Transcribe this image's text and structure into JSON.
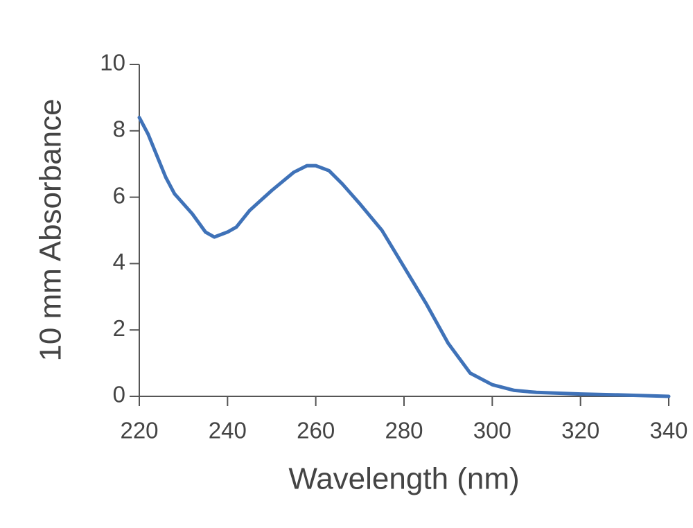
{
  "chart_data": {
    "type": "line",
    "x_label": "Wavelength (nm)",
    "y_label": "10 mm Absorbance",
    "x": [
      220,
      222,
      226,
      228,
      232,
      235,
      237,
      240,
      242,
      245,
      250,
      255,
      258,
      260,
      263,
      266,
      270,
      275,
      280,
      285,
      290,
      295,
      300,
      305,
      310,
      320,
      330,
      340
    ],
    "series": [
      {
        "color": "#3f72b8",
        "values": [
          8.4,
          7.9,
          6.6,
          6.1,
          5.5,
          4.95,
          4.8,
          4.95,
          5.1,
          5.6,
          6.2,
          6.75,
          6.95,
          6.95,
          6.8,
          6.4,
          5.8,
          5.0,
          3.9,
          2.8,
          1.6,
          0.7,
          0.35,
          0.18,
          0.12,
          0.07,
          0.04,
          0.0
        ]
      }
    ],
    "xlim": [
      220,
      340
    ],
    "xticks": [
      220,
      240,
      260,
      280,
      300,
      320,
      340
    ],
    "ylim": [
      0,
      10
    ],
    "yticks": [
      0,
      2,
      4,
      6,
      8,
      10
    ],
    "grid": false
  }
}
